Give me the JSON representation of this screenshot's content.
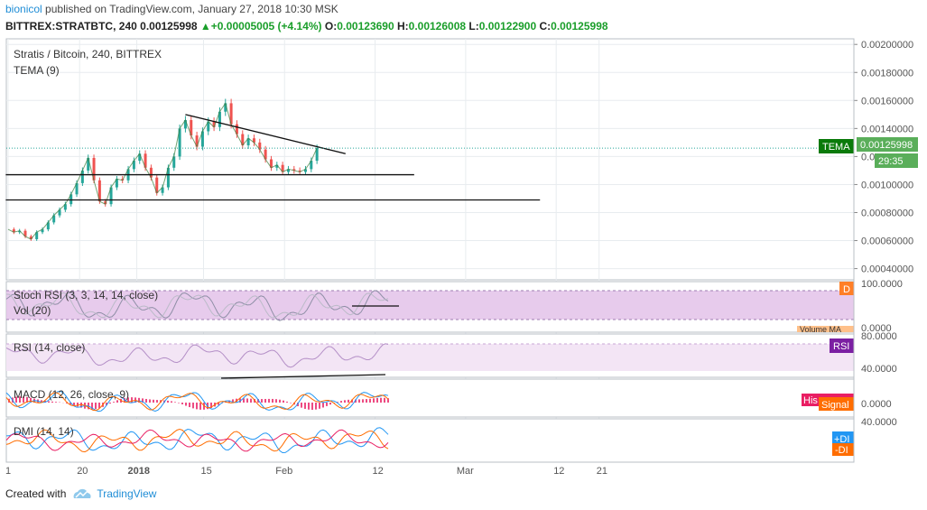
{
  "header": {
    "publisher": "bionicol",
    "published_text": "published on TradingView.com, January 27, 2018 10:30 MSK",
    "ticker": "BITTREX:STRATBTC, 240",
    "price": "0.00125998",
    "change": "+0.00005005 (+4.14%)",
    "o_label": "O:",
    "o_value": "0.00123690",
    "h_label": "H:",
    "h_value": "0.00126008",
    "l_label": "L:",
    "l_value": "0.00122900",
    "c_label": "C:",
    "c_value": "0.00125998"
  },
  "footer": {
    "created_with": "Created with",
    "brand": "TradingView"
  },
  "colors": {
    "up": "#26a69a",
    "down": "#ef5350",
    "tema_badge": "#0a7a0a",
    "stoch_band": "#e1bee7",
    "rsi_band": "#f3e5f5",
    "rsi_badge": "#7b1fa2",
    "macd_blue": "#2196f3",
    "signal_orange": "#ff6d00",
    "hist_pink": "#e91e63",
    "grid": "#e8ecef"
  },
  "chart_data": {
    "type": "line",
    "title": "Stratis / Bitcoin, 240, BITTREX",
    "overlay_label": "TEMA (9)",
    "y_ticks": [
      "0.00200000",
      "0.00180000",
      "0.00160000",
      "0.00140000",
      "0.00120000",
      "0.00100000",
      "0.00080000",
      "0.00060000",
      "0.00040000"
    ],
    "ylim": [
      0.00032,
      0.00204
    ],
    "x_ticks": [
      "1",
      "20",
      "2018",
      "15",
      "Feb",
      "12",
      "Mar",
      "12",
      "21"
    ],
    "last_price_label": "0.00125998",
    "tema_badge": "TEMA",
    "countdown": "29:35",
    "price_series": {
      "name": "STRATBTC close",
      "x": [
        0,
        0.5,
        1,
        1.5,
        2,
        2.5,
        3,
        3.5,
        4,
        4.5,
        5,
        5.5,
        6,
        6.5,
        7,
        7.5,
        8,
        8.5,
        9,
        9.5,
        10,
        10.5,
        11,
        11.5,
        12,
        12.5,
        13,
        13.5,
        14,
        14.5,
        15,
        15.5,
        16,
        16.5,
        17,
        17.5,
        18,
        18.5,
        19,
        19.5,
        20,
        20.5,
        21,
        21.5,
        22,
        22.5,
        23,
        23.5,
        24,
        24.5,
        25,
        25.5,
        26,
        26.5,
        27
      ],
      "values": [
        0.00068,
        0.00066,
        0.00067,
        0.00063,
        0.00061,
        0.00066,
        0.00068,
        0.00073,
        0.00078,
        0.00082,
        0.00086,
        0.00093,
        0.00101,
        0.0011,
        0.00119,
        0.00103,
        0.00088,
        0.00086,
        0.00098,
        0.00104,
        0.00103,
        0.00111,
        0.00117,
        0.00122,
        0.00112,
        0.00105,
        0.00094,
        0.00098,
        0.00112,
        0.0012,
        0.0014,
        0.00146,
        0.00135,
        0.00127,
        0.00138,
        0.00145,
        0.00141,
        0.00152,
        0.00158,
        0.00143,
        0.00136,
        0.00128,
        0.00133,
        0.0013,
        0.00125,
        0.00118,
        0.00112,
        0.00114,
        0.00109,
        0.00111,
        0.0011,
        0.00109,
        0.00111,
        0.00117,
        0.00126
      ]
    },
    "trendlines": [
      {
        "name": "descending-resistance",
        "x0": 15.5,
        "y0": 0.0015,
        "x1": 29.5,
        "y1": 0.00122
      },
      {
        "name": "support-1",
        "x0": -0.5,
        "y0": 0.00107,
        "x1": 35.5,
        "y1": 0.00107
      },
      {
        "name": "support-2",
        "x0": -0.5,
        "y0": 0.00089,
        "x1": 46.5,
        "y1": 0.00089
      }
    ],
    "panes": {
      "stoch": {
        "label": "Stoch RSI (3, 3, 14, 14, close)",
        "vol_label": "Vol (20)",
        "badge": "D",
        "volume_badge": "Volume MA",
        "top_tick": "100.0000",
        "bottom_tick": "0.0000"
      },
      "rsi": {
        "label": "RSI (14, close)",
        "badge": "RSI",
        "top_tick": "80.0000",
        "bottom_tick": "40.0000"
      },
      "macd": {
        "label": "MACD (12, 26, close, 9)",
        "hist_badge": "His",
        "signal_badge": "Signal",
        "zero_tick": "0.0000"
      },
      "dmi": {
        "label": "DMI (14, 14)",
        "plus_badge": "+DI",
        "minus_badge": "-DI",
        "tick": "40.0000"
      }
    },
    "grid": true
  }
}
